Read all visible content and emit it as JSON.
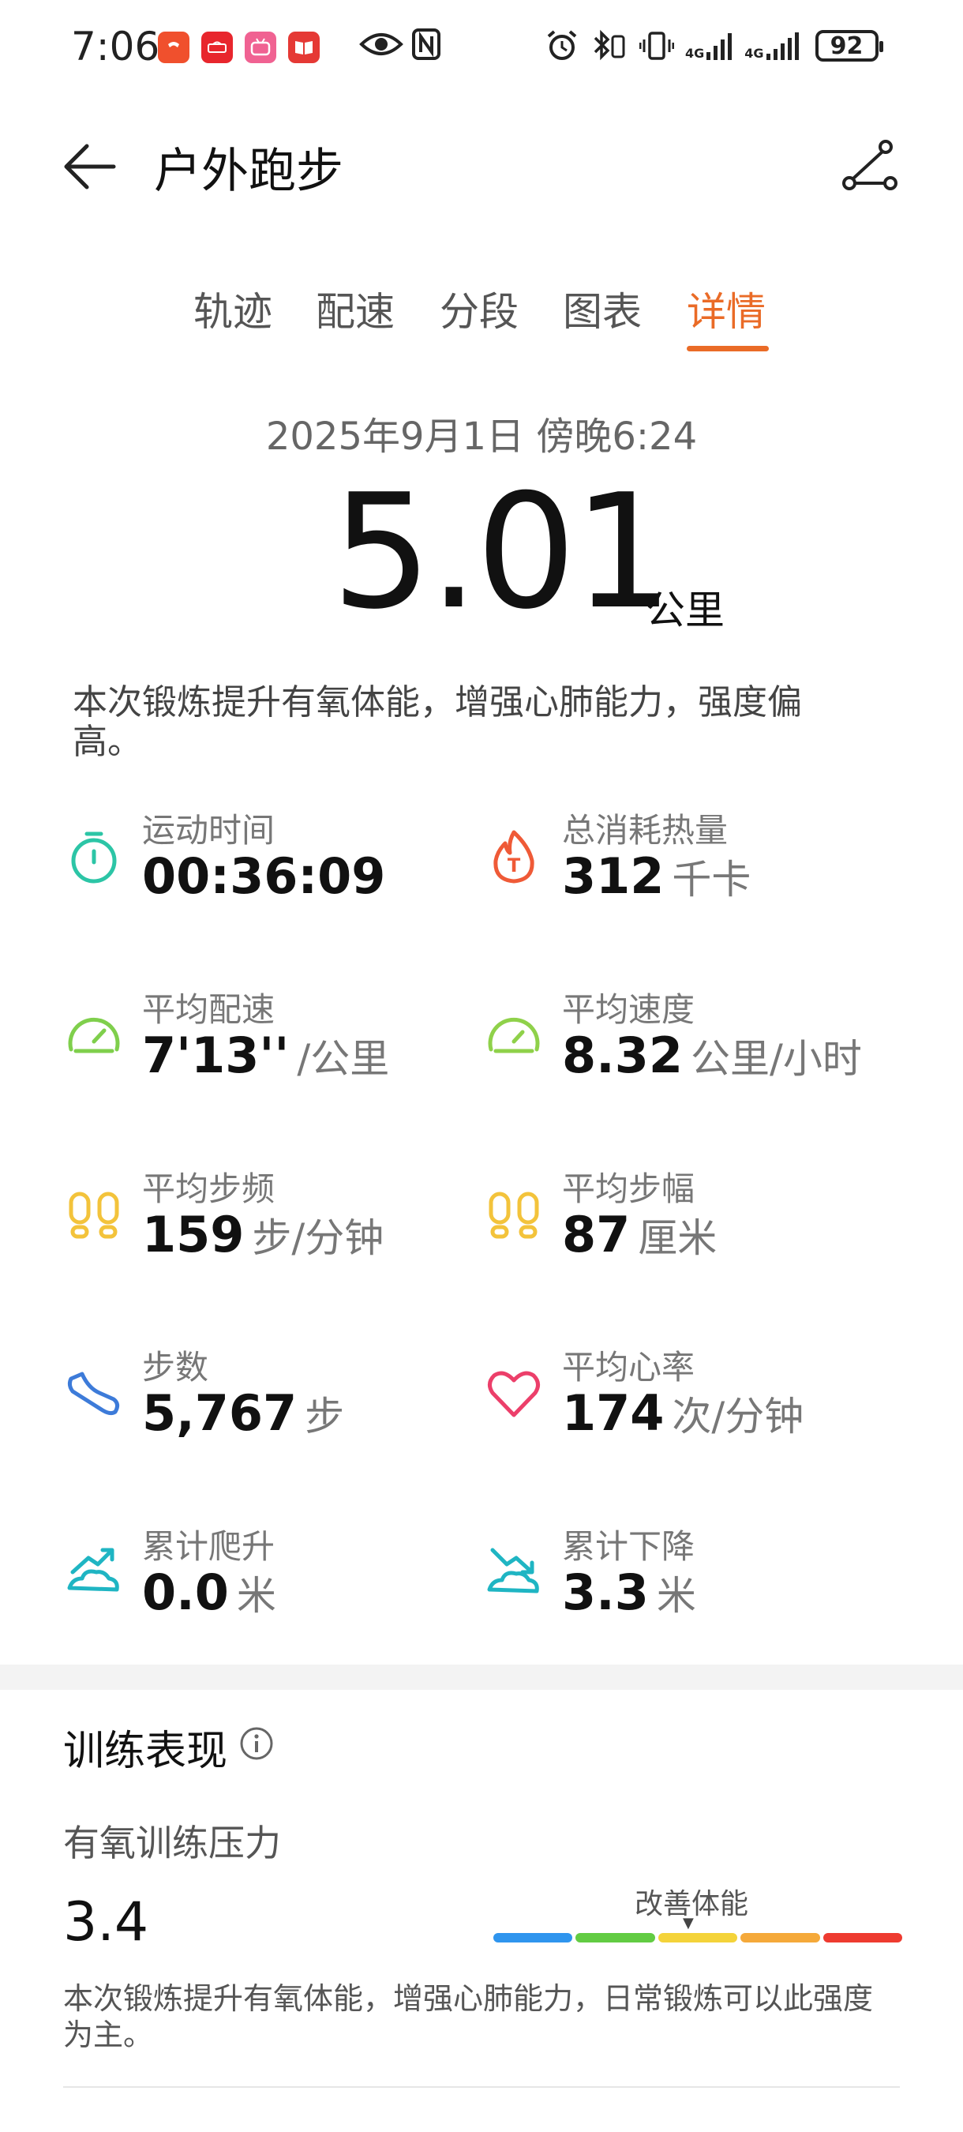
{
  "status_bar": {
    "time": "7:06",
    "apps": [
      {
        "name": "phone-app-icon",
        "color": "#f0502d"
      },
      {
        "name": "huawei-app-icon",
        "color": "#e8262d"
      },
      {
        "name": "bilibili-app-icon",
        "color": "#f06292"
      },
      {
        "name": "books-app-icon",
        "color": "#e53935"
      }
    ],
    "network1": "4G",
    "network2": "4G",
    "battery": "92"
  },
  "header": {
    "title": "户外跑步"
  },
  "tabs": [
    {
      "label": "轨迹"
    },
    {
      "label": "配速"
    },
    {
      "label": "分段"
    },
    {
      "label": "图表"
    },
    {
      "label": "详情",
      "active": true
    }
  ],
  "workout": {
    "date": "2025年9月1日 傍晚6:24",
    "distance": "5.01",
    "distance_unit": "公里",
    "summary": "本次锻炼提升有氧体能，增强心肺能力，强度偏高。"
  },
  "metrics": [
    {
      "label": "运动时间",
      "value": "00:36:09",
      "unit": "",
      "icon": "stopwatch-icon",
      "color": "#2cc5a6"
    },
    {
      "label": "总消耗热量",
      "value": "312",
      "unit": "千卡",
      "icon": "flame-icon",
      "color": "#ef5a37"
    },
    {
      "label": "平均配速",
      "value": "7'13''",
      "unit": "/公里",
      "icon": "gauge-icon",
      "color": "#7fcf4c"
    },
    {
      "label": "平均速度",
      "value": "8.32",
      "unit": "公里/小时",
      "icon": "speedometer-icon",
      "color": "#8fd14a"
    },
    {
      "label": "平均步频",
      "value": "159",
      "unit": "步/分钟",
      "icon": "footprints-icon",
      "color": "#f3c33b"
    },
    {
      "label": "平均步幅",
      "value": "87",
      "unit": "厘米",
      "icon": "footprints-stride-icon",
      "color": "#f3c33b"
    },
    {
      "label": "步数",
      "value": "5,767",
      "unit": "步",
      "icon": "shoe-icon",
      "color": "#3d7bd9"
    },
    {
      "label": "平均心率",
      "value": "174",
      "unit": "次/分钟",
      "icon": "heart-icon",
      "color": "#ec3f6a"
    },
    {
      "label": "累计爬升",
      "value": "0.0",
      "unit": "米",
      "icon": "ascent-icon",
      "color": "#1fb5c3"
    },
    {
      "label": "累计下降",
      "value": "3.3",
      "unit": "米",
      "icon": "descent-icon",
      "color": "#1fb5c3"
    }
  ],
  "training": {
    "title": "训练表现",
    "aerobic_label": "有氧训练压力",
    "aerobic_value": "3.4",
    "scale_label": "改善体能",
    "scale_colors": [
      "#2f95ee",
      "#62cc43",
      "#f4d33a",
      "#f5a93a",
      "#ee3b30"
    ],
    "description": "本次锻炼提升有氧体能，增强心肺能力，日常锻炼可以此强度为主。"
  }
}
